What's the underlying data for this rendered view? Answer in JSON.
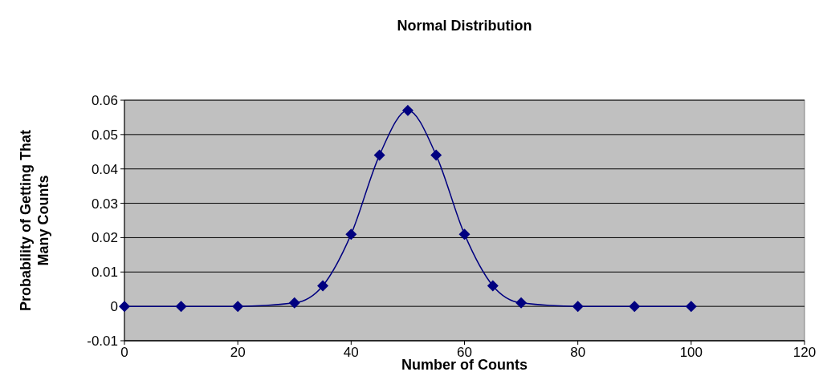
{
  "chart_data": {
    "type": "line",
    "title": "Normal Distribution",
    "xlabel": "Number of Counts",
    "ylabel": "Probability of Getting That\nMany Counts",
    "x": [
      0,
      10,
      20,
      30,
      35,
      40,
      45,
      50,
      55,
      60,
      65,
      70,
      80,
      90,
      100
    ],
    "series": [
      {
        "color": "#000080",
        "values": [
          0,
          0,
          0,
          0.001,
          0.006,
          0.021,
          0.044,
          0.057,
          0.044,
          0.021,
          0.006,
          0.001,
          0,
          0,
          0
        ]
      }
    ],
    "xlim": [
      0,
      120
    ],
    "xticks": [
      0,
      20,
      40,
      60,
      80,
      100,
      120
    ],
    "ylim": [
      -0.01,
      0.06
    ],
    "yticks": [
      -0.01,
      0,
      0.01,
      0.02,
      0.03,
      0.04,
      0.05,
      0.06
    ],
    "grid": "y",
    "marker": "diamond",
    "line_style": "solid"
  }
}
